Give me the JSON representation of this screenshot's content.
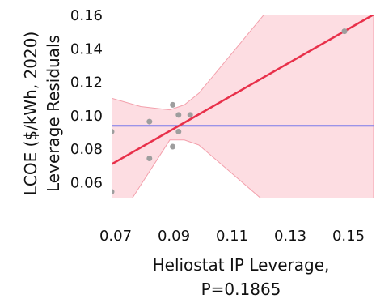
{
  "chart_data": {
    "type": "scatter",
    "title": "",
    "xlabel_lines": [
      "Heliostat IP Leverage,",
      "P=0.1865"
    ],
    "ylabel_lines": [
      "LCOE ($/kWh, 2020)",
      "Leverage Residuals"
    ],
    "xlim": [
      0.07,
      0.16
    ],
    "ylim": [
      0.05,
      0.16
    ],
    "x_ticks": [
      0.07,
      0.09,
      0.11,
      0.13,
      0.15
    ],
    "x_tick_labels": [
      "0.07",
      "0.09",
      "0.11",
      "0.13",
      "0.15"
    ],
    "y_ticks": [
      0.06,
      0.08,
      0.1,
      0.12,
      0.14,
      0.16
    ],
    "y_tick_labels": [
      "0.06",
      "0.08",
      "0.10",
      "0.12",
      "0.14",
      "0.16"
    ],
    "grid": false,
    "points": [
      {
        "x": 0.07,
        "y": 0.054
      },
      {
        "x": 0.07,
        "y": 0.09
      },
      {
        "x": 0.083,
        "y": 0.074
      },
      {
        "x": 0.083,
        "y": 0.096
      },
      {
        "x": 0.091,
        "y": 0.106
      },
      {
        "x": 0.091,
        "y": 0.081
      },
      {
        "x": 0.093,
        "y": 0.09
      },
      {
        "x": 0.093,
        "y": 0.1
      },
      {
        "x": 0.097,
        "y": 0.1
      },
      {
        "x": 0.15,
        "y": 0.15
      }
    ],
    "fit_line": {
      "x": [
        0.07,
        0.16
      ],
      "y": [
        0.0705,
        0.16
      ]
    },
    "mean_line": {
      "y": 0.0935
    },
    "ci_band": {
      "x": [
        0.07,
        0.08,
        0.09,
        0.095,
        0.1,
        0.11,
        0.12,
        0.13,
        0.14,
        0.15,
        0.16
      ],
      "upper": [
        0.11,
        0.105,
        0.103,
        0.106,
        0.113,
        0.134,
        0.155,
        0.176,
        0.197,
        0.218,
        0.24
      ],
      "lower": [
        0.031,
        0.058,
        0.085,
        0.085,
        0.082,
        0.067,
        0.052,
        0.037,
        0.02,
        0.003,
        -0.01
      ]
    },
    "colors": {
      "points": "#9e9e9e",
      "fit_line": "#e8304a",
      "mean_line": "#7b7bea",
      "band_fill": "#fddde2",
      "band_edge": "#f3a0ac"
    }
  }
}
